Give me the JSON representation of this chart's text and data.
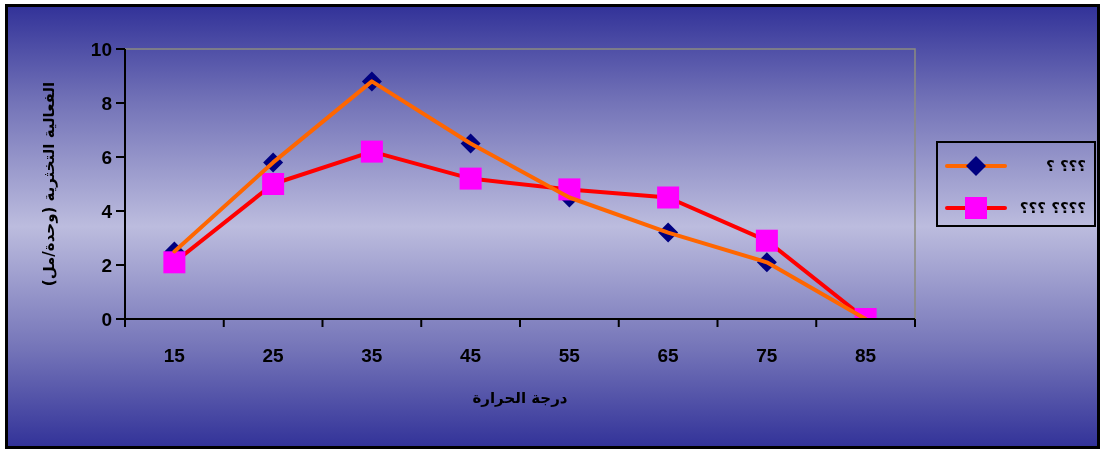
{
  "chart_data": {
    "type": "line",
    "xlabel": "درجة الحرارة",
    "ylabel": "الفعالية التخثرية (وحدة/مل)",
    "categories": [
      "15",
      "25",
      "35",
      "45",
      "55",
      "65",
      "75",
      "85"
    ],
    "series": [
      {
        "name": "؟؟؟ ؟",
        "color": "#ff6600",
        "marker": "diamond",
        "colors": [
          "#000080",
          "#000080",
          "#000080",
          "#000080",
          "#000080",
          "#000080",
          "#000080",
          "#000080"
        ],
        "values": [
          2.5,
          5.8,
          8.8,
          6.5,
          4.5,
          3.2,
          2.1,
          0
        ]
      },
      {
        "name": "؟؟؟؟ ؟؟؟",
        "color": "#ff0000",
        "marker": "square",
        "colors": [
          "#ff00ff",
          "#ff00ff",
          "#ff00ff",
          "#ff00ff",
          "#ff00ff",
          "#ff00ff",
          "#ff00ff",
          "#ff00ff"
        ],
        "values": [
          2.1,
          5.0,
          6.2,
          5.2,
          4.8,
          4.5,
          2.9,
          0
        ]
      }
    ],
    "ylim": [
      0,
      10
    ],
    "yticks": [
      0,
      2,
      4,
      6,
      8,
      10
    ],
    "legend": "right",
    "line_style": "solid"
  }
}
